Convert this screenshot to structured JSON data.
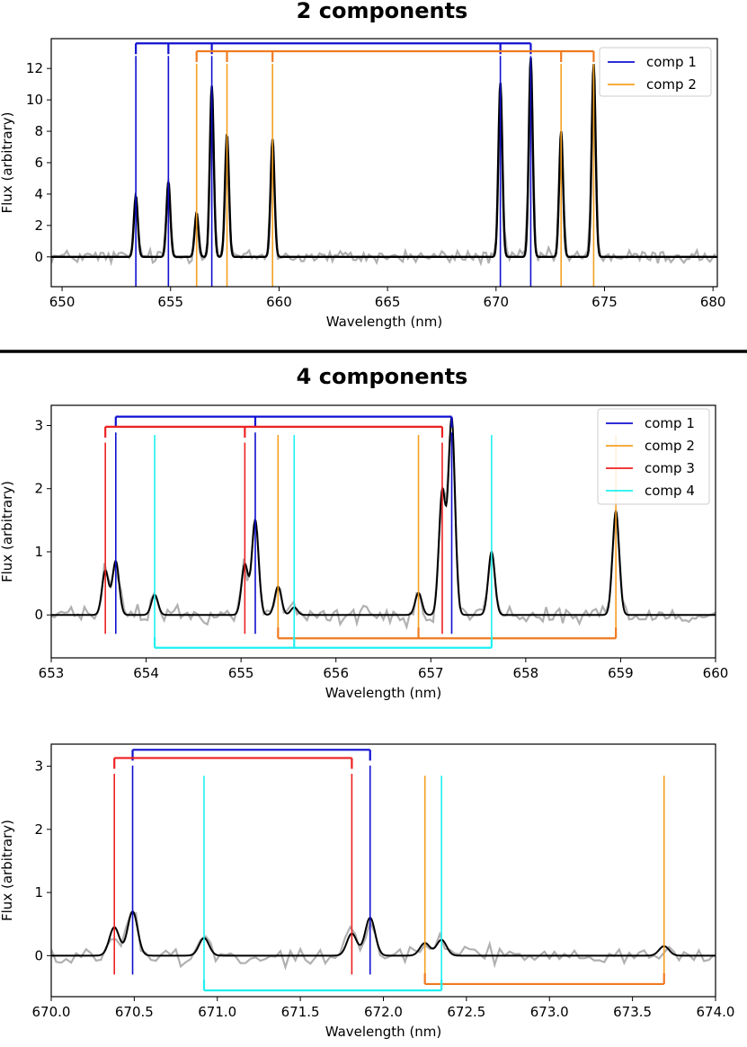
{
  "figure": {
    "top_title": "2 components",
    "bottom_title": "4 components"
  },
  "colors": {
    "comp1": "#1010d0",
    "comp2": "#f5a020",
    "comp3": "#ee2020",
    "comp4": "#20f0f0",
    "bracket2": "#f07a20",
    "noise": "#b0b0b0",
    "model": "#000000"
  },
  "chart_data": [
    {
      "type": "line",
      "title": "2 components",
      "xlabel": "Wavelength (nm)",
      "ylabel": "Flux (arbitrary)",
      "xlim": [
        649.5,
        680.2
      ],
      "ylim": [
        -1.9,
        13.9
      ],
      "xticks": [
        650,
        655,
        660,
        665,
        670,
        675,
        680
      ],
      "yticks": [
        0,
        2,
        4,
        6,
        8,
        10,
        12
      ],
      "legend": {
        "position": "top-right",
        "entries": [
          "comp 1",
          "comp 2"
        ]
      },
      "series": [
        {
          "name": "comp 1",
          "lines": [
            653.4,
            654.9,
            656.9,
            670.2,
            671.6
          ],
          "heights": [
            3.9,
            4.8,
            10.9,
            11.1,
            12.7
          ],
          "bracket_y": 13.6
        },
        {
          "name": "comp 2",
          "lines": [
            656.2,
            657.6,
            659.7,
            673.0,
            674.5
          ],
          "heights": [
            2.8,
            7.8,
            7.5,
            8.0,
            12.3
          ],
          "bracket_y": 13.1
        }
      ]
    },
    {
      "type": "line",
      "title": "",
      "xlabel": "Wavelength (nm)",
      "ylabel": "Flux (arbitrary)",
      "xlim": [
        653,
        660
      ],
      "ylim": [
        -0.68,
        3.32
      ],
      "xticks": [
        653,
        654,
        655,
        656,
        657,
        658,
        659,
        660
      ],
      "yticks": [
        0,
        1,
        2,
        3
      ],
      "legend": {
        "position": "top-right",
        "entries": [
          "comp 1",
          "comp 2",
          "comp 3",
          "comp 4"
        ]
      },
      "series": [
        {
          "name": "comp 1",
          "lines": [
            653.68,
            655.15,
            657.22
          ],
          "heights": [
            0.85,
            1.5,
            3.1
          ],
          "bracket_y": 3.14,
          "bracket_side": "top"
        },
        {
          "name": "comp 2",
          "lines": [
            655.39,
            656.87,
            658.95
          ],
          "heights": [
            0.45,
            0.35,
            1.65
          ],
          "bracket_y": -0.37,
          "bracket_side": "bottom"
        },
        {
          "name": "comp 3",
          "lines": [
            653.57,
            655.04,
            657.12
          ],
          "heights": [
            0.7,
            0.8,
            1.95
          ],
          "bracket_y": 2.98,
          "bracket_side": "top"
        },
        {
          "name": "comp 4",
          "lines": [
            654.09,
            655.56,
            657.64
          ],
          "heights": [
            0.32,
            0.12,
            1.0
          ],
          "bracket_y": -0.52,
          "bracket_side": "bottom"
        }
      ]
    },
    {
      "type": "line",
      "title": "",
      "xlabel": "Wavelength (nm)",
      "ylabel": "Flux (arbitrary)",
      "xlim": [
        670,
        674
      ],
      "ylim": [
        -0.65,
        3.35
      ],
      "xticks": [
        670.0,
        670.5,
        671.0,
        671.5,
        672.0,
        672.5,
        673.0,
        673.5,
        674.0
      ],
      "yticks": [
        0,
        1,
        2,
        3
      ],
      "series": [
        {
          "name": "comp 1",
          "lines": [
            670.49,
            671.92
          ],
          "heights": [
            0.7,
            0.6
          ],
          "bracket_y": 3.26,
          "bracket_side": "top"
        },
        {
          "name": "comp 2",
          "lines": [
            672.25,
            673.69
          ],
          "heights": [
            0.2,
            0.15
          ],
          "bracket_y": -0.45,
          "bracket_side": "bottom"
        },
        {
          "name": "comp 3",
          "lines": [
            670.38,
            671.81
          ],
          "heights": [
            0.45,
            0.35
          ],
          "bracket_y": 3.13,
          "bracket_side": "top"
        },
        {
          "name": "comp 4",
          "lines": [
            670.92,
            672.35
          ],
          "heights": [
            0.28,
            0.25
          ],
          "bracket_y": -0.55,
          "bracket_side": "bottom"
        }
      ]
    }
  ]
}
